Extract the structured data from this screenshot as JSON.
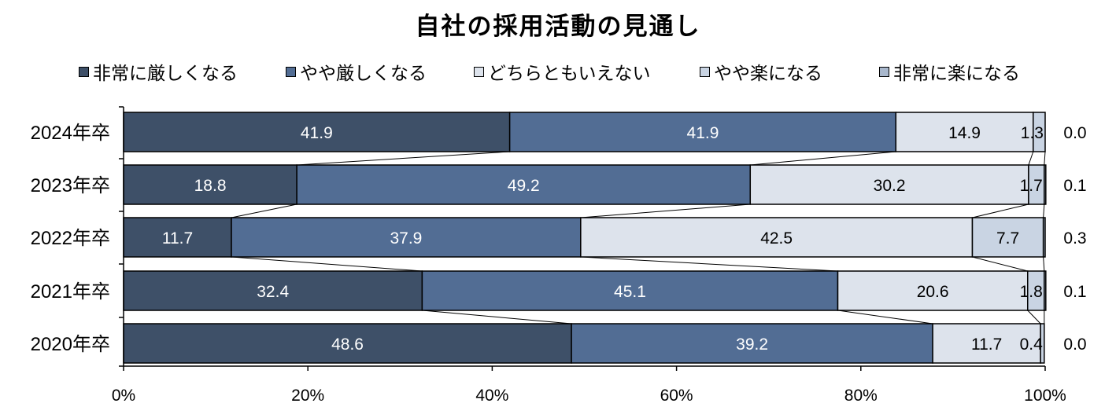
{
  "chart_data": {
    "type": "bar",
    "stacked": true,
    "orientation": "horizontal",
    "percent_stacked": true,
    "title": "自社の採用活動の見通し",
    "categories": [
      "2024年卒",
      "2023年卒",
      "2022年卒",
      "2021年卒",
      "2020年卒"
    ],
    "series": [
      {
        "name": "非常に厳しくなる",
        "color": "#3e5068",
        "label_color": "#ffffff",
        "values": [
          41.9,
          18.8,
          11.7,
          32.4,
          48.6
        ],
        "labels": [
          "41.9",
          "18.8",
          "11.7",
          "32.4",
          "48.6"
        ]
      },
      {
        "name": "やや厳しくなる",
        "color": "#526d94",
        "label_color": "#ffffff",
        "values": [
          41.9,
          49.2,
          37.9,
          45.1,
          39.2
        ],
        "labels": [
          "41.9",
          "49.2",
          "37.9",
          "45.1",
          "39.2"
        ]
      },
      {
        "name": "どちらともいえない",
        "color": "#dde3ec",
        "label_color": "#000000",
        "values": [
          14.9,
          30.2,
          42.5,
          20.6,
          11.7
        ],
        "labels": [
          "14.9",
          "30.2",
          "42.5",
          "20.6",
          "11.7"
        ]
      },
      {
        "name": "やや楽になる",
        "color": "#c9d4e3",
        "label_color": "#000000",
        "values": [
          1.3,
          1.7,
          7.7,
          1.8,
          0.4
        ],
        "labels": [
          "1.3",
          "1.7",
          "7.7",
          "1.8",
          "0.4"
        ]
      },
      {
        "name": "非常に楽になる",
        "color": "#a9b8cd",
        "label_color": "#000000",
        "values": [
          0.0,
          0.1,
          0.3,
          0.1,
          0.0
        ],
        "labels": [
          "0.0",
          "0.1",
          "0.3",
          "0.1",
          "0.0"
        ]
      }
    ],
    "x_ticks": [
      "0%",
      "20%",
      "40%",
      "60%",
      "80%",
      "100%"
    ],
    "xlim": [
      0,
      100
    ],
    "legend_position": "top",
    "series_lines": true,
    "grid": false
  }
}
